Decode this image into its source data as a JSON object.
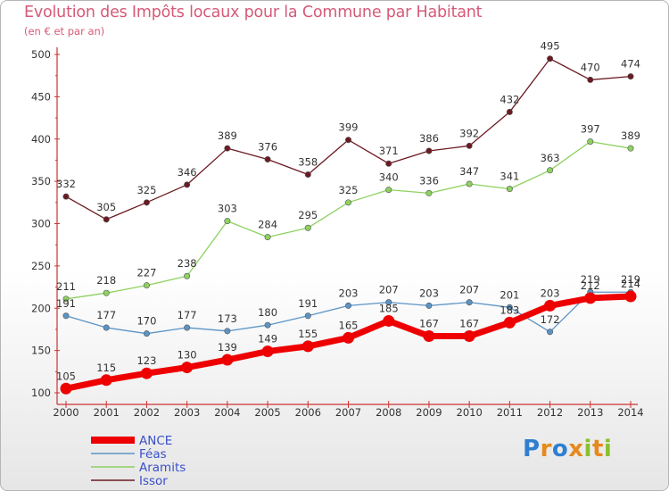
{
  "title": "Evolution des Impôts locaux pour la Commune par Habitant",
  "subtitle": "(en € et par an)",
  "logo": {
    "letters": [
      {
        "ch": "P",
        "color": "#2f7fd0"
      },
      {
        "ch": "r",
        "color": "#e68a1c"
      },
      {
        "ch": "o",
        "color": "#2f7fd0"
      },
      {
        "ch": "x",
        "color": "#e68a1c"
      },
      {
        "ch": "i",
        "color": "#8abf2f"
      },
      {
        "ch": "t",
        "color": "#e68a1c"
      },
      {
        "ch": "i",
        "color": "#8abf2f"
      }
    ]
  },
  "chart_data": {
    "type": "line",
    "title": "Evolution des Impôts locaux pour la Commune par Habitant",
    "subtitle": "(en € et par an)",
    "xlabel": "",
    "ylabel": "",
    "x": [
      "2000",
      "2001",
      "2002",
      "2003",
      "2004",
      "2005",
      "2006",
      "2007",
      "2008",
      "2009",
      "2010",
      "2011",
      "2012",
      "2013",
      "2014"
    ],
    "ylim": [
      100,
      500
    ],
    "yticks": [
      100,
      150,
      200,
      250,
      300,
      350,
      400,
      450,
      500
    ],
    "grid": false,
    "legend_position": "bottom-left",
    "series": [
      {
        "name": "ANCE",
        "color": "#ee0000",
        "values": [
          105,
          115,
          123,
          130,
          139,
          149,
          155,
          165,
          185,
          167,
          167,
          183,
          203,
          212,
          214
        ]
      },
      {
        "name": "Féas",
        "color": "#5b94c6",
        "values": [
          191,
          177,
          170,
          177,
          173,
          180,
          191,
          203,
          207,
          203,
          207,
          201,
          172,
          219,
          219
        ]
      },
      {
        "name": "Aramits",
        "color": "#8ed160",
        "values": [
          211,
          218,
          227,
          238,
          303,
          284,
          295,
          325,
          340,
          336,
          347,
          341,
          363,
          397,
          389
        ]
      },
      {
        "name": "Issor",
        "color": "#6b1a22",
        "values": [
          332,
          305,
          325,
          346,
          389,
          376,
          358,
          399,
          371,
          386,
          392,
          432,
          495,
          470,
          474
        ]
      }
    ]
  }
}
